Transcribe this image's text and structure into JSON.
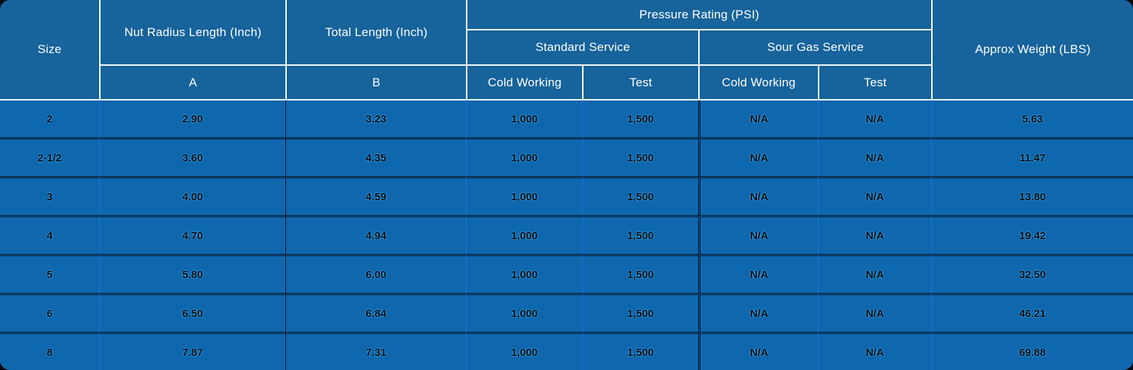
{
  "table": {
    "header": {
      "size": "Size",
      "nut_radius_length": "Nut Radius Length (Inch)",
      "nut_radius_sub": "A",
      "total_length": "Total Length (Inch)",
      "total_length_sub": "B",
      "pressure_rating": "Pressure Rating (PSI)",
      "standard_service": "Standard Service",
      "sour_gas_service": "Sour Gas Service",
      "std_cold_working": "Cold Working",
      "std_test": "Test",
      "sour_cold_working": "Cold Working",
      "sour_test": "Test",
      "approx_weight": "Approx Weight (LBS)"
    }
  },
  "chart_data": {
    "type": "table",
    "title": "Pressure and dimension specification table",
    "columns": [
      "Size",
      "Nut Radius Length (Inch) — A",
      "Total Length (Inch) — B",
      "Pressure Rating (PSI) — Standard Service — Cold Working",
      "Pressure Rating (PSI) — Standard Service — Test",
      "Pressure Rating (PSI) — Sour Gas Service — Cold Working",
      "Pressure Rating (PSI) — Sour Gas Service — Test",
      "Approx Weight (LBS)"
    ],
    "rows": [
      [
        "2",
        "2.90",
        "3.23",
        "1,000",
        "1,500",
        "N/A",
        "N/A",
        "5.63"
      ],
      [
        "2-1/2",
        "3.60",
        "4.35",
        "1,000",
        "1,500",
        "N/A",
        "N/A",
        "11.47"
      ],
      [
        "3",
        "4.00",
        "4.59",
        "1,000",
        "1,500",
        "N/A",
        "N/A",
        "13.80"
      ],
      [
        "4",
        "4.70",
        "4.94",
        "1,000",
        "1,500",
        "N/A",
        "N/A",
        "19.42"
      ],
      [
        "5",
        "5.80",
        "6.00",
        "1,000",
        "1,500",
        "N/A",
        "N/A",
        "32.50"
      ],
      [
        "6",
        "6.50",
        "6.84",
        "1,000",
        "1,500",
        "N/A",
        "N/A",
        "46.21"
      ],
      [
        "8",
        "7.87",
        "7.31",
        "1,000",
        "1,500",
        "N/A",
        "N/A",
        "69.88"
      ]
    ]
  },
  "colors": {
    "header_bg": "#17639b",
    "body_bg": "#0f67ae",
    "header_text": "#ffffff",
    "body_text": "#020a10",
    "glow": "#41b0f0",
    "blue_gridline": "#1e72d4",
    "dark_gridline": "#06131f",
    "white_gridline": "#fdfdfd",
    "footer_strip": "#11568c"
  }
}
